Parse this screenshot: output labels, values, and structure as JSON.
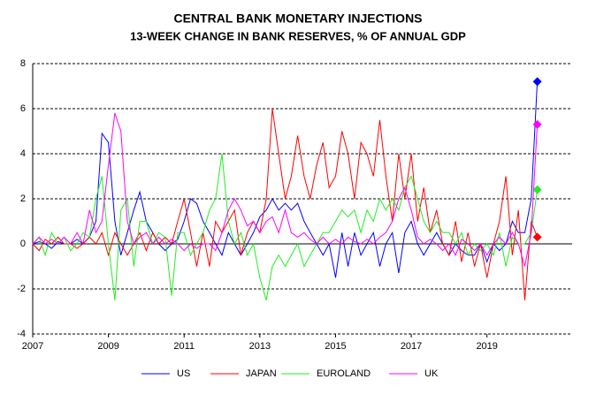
{
  "chart_data": {
    "type": "line",
    "title": "CENTRAL BANK MONETARY INJECTIONS",
    "subtitle": "13-WEEK CHANGE IN BANK RESERVES, % OF ANNUAL GDP",
    "x": [
      2007,
      2007.17,
      2007.33,
      2007.5,
      2007.67,
      2007.83,
      2008,
      2008.17,
      2008.33,
      2008.5,
      2008.67,
      2008.83,
      2009,
      2009.17,
      2009.33,
      2009.5,
      2009.67,
      2009.83,
      2010,
      2010.17,
      2010.33,
      2010.5,
      2010.67,
      2010.83,
      2011,
      2011.17,
      2011.33,
      2011.5,
      2011.67,
      2011.83,
      2012,
      2012.17,
      2012.33,
      2012.5,
      2012.67,
      2012.83,
      2013,
      2013.17,
      2013.33,
      2013.5,
      2013.67,
      2013.83,
      2014,
      2014.17,
      2014.33,
      2014.5,
      2014.67,
      2014.83,
      2015,
      2015.17,
      2015.33,
      2015.5,
      2015.67,
      2015.83,
      2016,
      2016.17,
      2016.33,
      2016.5,
      2016.67,
      2016.83,
      2017,
      2017.17,
      2017.33,
      2017.5,
      2017.67,
      2017.83,
      2018,
      2018.17,
      2018.33,
      2018.5,
      2018.67,
      2018.83,
      2019,
      2019.17,
      2019.33,
      2019.5,
      2019.67,
      2019.83,
      2020,
      2020.17,
      2020.33
    ],
    "series": [
      {
        "name": "US",
        "color": "#0000ff",
        "values": [
          0,
          0.1,
          0,
          -0.2,
          0.1,
          0,
          0,
          0.2,
          0,
          0.3,
          1,
          4.9,
          4.5,
          1,
          -0.5,
          0.5,
          1.5,
          2.3,
          1,
          0.5,
          0,
          -0.3,
          0,
          0.2,
          1,
          2,
          1.8,
          1,
          0.5,
          0,
          -0.5,
          0.5,
          0,
          -0.5,
          0,
          0.5,
          1.2,
          1.5,
          2,
          1.5,
          1.8,
          1.5,
          1.8,
          1,
          0.5,
          0,
          -0.5,
          0,
          -1.5,
          0.5,
          -1,
          0.5,
          -0.5,
          0,
          0.5,
          -1,
          0,
          0.5,
          -1.3,
          0.5,
          1,
          0,
          -0.5,
          0,
          0.5,
          0,
          -0.5,
          0,
          -0.3,
          -0.5,
          -0.5,
          0,
          -0.8,
          0,
          -0.3,
          0,
          1,
          0.5,
          0.5,
          2,
          7.2
        ]
      },
      {
        "name": "JAPAN",
        "color": "#ff0000",
        "values": [
          0,
          -0.3,
          0.2,
          0,
          0.3,
          0,
          0,
          -0.2,
          0,
          0.3,
          0,
          0.5,
          -0.5,
          0.5,
          0,
          -0.5,
          0,
          0.5,
          -0.3,
          0.5,
          0,
          0.3,
          0,
          1,
          2,
          0.5,
          -1,
          0.5,
          -1,
          1,
          0.5,
          1,
          1.5,
          -0.5,
          0.5,
          1,
          0.5,
          2,
          6,
          4,
          2,
          3,
          4.8,
          3,
          2,
          3.5,
          4.5,
          2.5,
          3,
          5,
          4,
          2,
          4.5,
          4,
          3,
          5.5,
          3,
          1,
          4,
          2,
          4,
          1,
          2.5,
          0.5,
          1.5,
          0,
          -0.5,
          1,
          -0.8,
          0.5,
          -1,
          0,
          -1.5,
          0,
          1,
          3,
          -0.5,
          1.5,
          -2.5,
          1,
          0.3
        ]
      },
      {
        "name": "EUROLAND",
        "color": "#22ee22",
        "values": [
          0,
          0.3,
          -0.5,
          0.5,
          0,
          0.3,
          -0.3,
          0,
          0.5,
          0.3,
          2,
          3,
          0,
          -2.5,
          1.5,
          2,
          -1,
          1,
          1,
          0,
          0.5,
          0.3,
          -2.3,
          0.5,
          0.5,
          -0.5,
          0,
          0.5,
          1.5,
          2,
          4,
          1,
          0,
          0.5,
          -0.5,
          0,
          -1.5,
          -2.5,
          -1,
          -0.5,
          -1,
          -0.5,
          0,
          -1,
          -0.5,
          0,
          0.5,
          0.5,
          1,
          1.5,
          1.2,
          1.5,
          0.5,
          1.5,
          1,
          2,
          1.5,
          2,
          1.5,
          2.5,
          3,
          2,
          1,
          0.5,
          1,
          0.5,
          0.5,
          0,
          0.5,
          -0.5,
          0,
          -0.3,
          0,
          -0.5,
          0.5,
          -1,
          0.3,
          0,
          0,
          0.5,
          2.4
        ]
      },
      {
        "name": "UK",
        "color": "#ff00ff",
        "values": [
          0,
          0.3,
          0,
          0.2,
          0,
          0.3,
          0,
          0.5,
          0,
          1.5,
          0.5,
          1,
          3.5,
          5.8,
          5,
          1,
          0,
          0.3,
          0.5,
          0,
          0.3,
          0,
          0.2,
          0,
          -0.3,
          0,
          -0.2,
          0,
          0,
          -0.3,
          0.5,
          1.5,
          2,
          1.5,
          0.8,
          1,
          0.5,
          1,
          1.2,
          0.5,
          1.5,
          0.5,
          0.3,
          0.5,
          0.2,
          0,
          0.3,
          0,
          0.2,
          0,
          0.3,
          0.1,
          0,
          0.2,
          0,
          0.3,
          0.5,
          1,
          2,
          2.5,
          1.5,
          0.3,
          0,
          0.2,
          0,
          -0.3,
          0,
          -0.5,
          0.2,
          0,
          -0.3,
          0,
          -0.5,
          0,
          0.3,
          0,
          0.5,
          0,
          -1,
          0.5,
          5.3
        ]
      }
    ],
    "xlim": [
      2007,
      2021.25
    ],
    "xticks": [
      2007,
      2009,
      2011,
      2013,
      2015,
      2017,
      2019
    ],
    "ylim": [
      -4,
      8
    ],
    "yticks": [
      -4,
      -2,
      0,
      2,
      4,
      6,
      8
    ],
    "grid": true,
    "legend": "bottom"
  }
}
